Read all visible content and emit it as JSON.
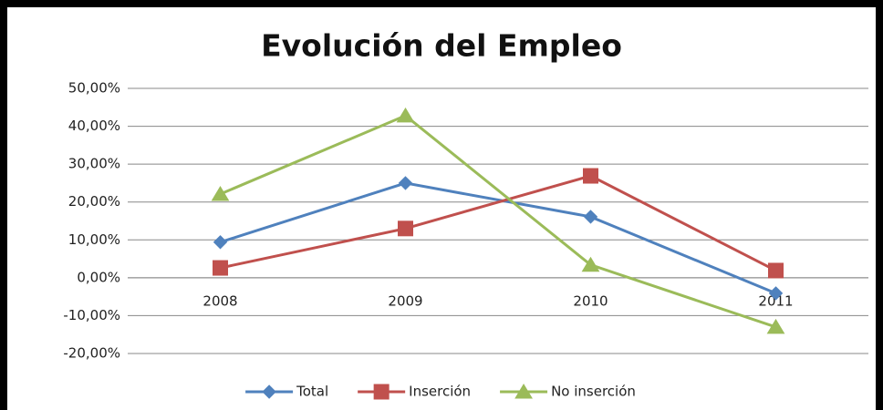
{
  "chart_data": {
    "type": "line",
    "title": "Evolución del Empleo",
    "categories": [
      "2008",
      "2009",
      "2010",
      "2011"
    ],
    "series": [
      {
        "name": "Total",
        "color": "#4f81bd",
        "marker": "diamond",
        "values": [
          9.4,
          25,
          16.1,
          -4.1
        ]
      },
      {
        "name": "Inserción",
        "color": "#c0504d",
        "marker": "square",
        "values": [
          2.6,
          13,
          26.9,
          1.9
        ]
      },
      {
        "name": "No inserción",
        "color": "#9bbb59",
        "marker": "triangle",
        "values": [
          22.1,
          42.8,
          3.4,
          -13
        ]
      }
    ],
    "ylim": [
      -20,
      50
    ],
    "yticks": [
      {
        "value": -20,
        "label": "-20,00%"
      },
      {
        "value": -10,
        "label": "-10,00%"
      },
      {
        "value": 0,
        "label": "0,00%"
      },
      {
        "value": 10,
        "label": "10,00%"
      },
      {
        "value": 20,
        "label": "20,00%"
      },
      {
        "value": 30,
        "label": "30,00%"
      },
      {
        "value": 40,
        "label": "40,00%"
      },
      {
        "value": 50,
        "label": "50,00%"
      }
    ],
    "grid": true,
    "legend": "bottom"
  }
}
